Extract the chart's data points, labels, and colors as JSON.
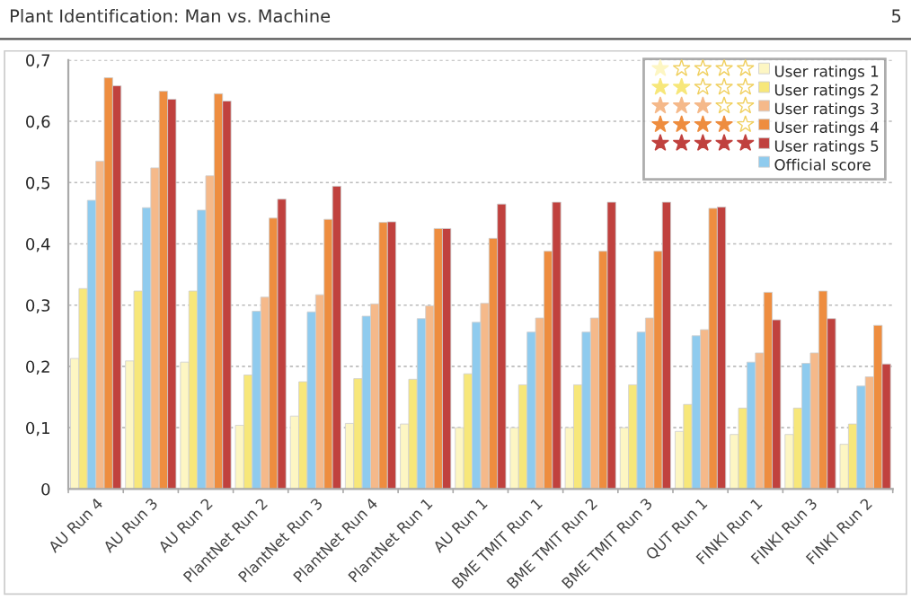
{
  "chart_data": {
    "type": "bar",
    "title": "Plant Identification: Man vs. Machine",
    "annotations": [
      "5"
    ],
    "categories": [
      "AU Run 4",
      "AU Run 3",
      "AU Run 2",
      "PlantNet Run 2",
      "PlantNet Run 3",
      "PlantNet Run 4",
      "PlantNet Run 1",
      "AU Run 1",
      "BME TMIT Run 1",
      "BME TMIT Run 2",
      "BME TMIT Run 3",
      "QUT Run 1",
      "FINKI Run 1",
      "FINKI Run 3",
      "FINKI Run 2"
    ],
    "series": [
      {
        "name": "User ratings 1",
        "color": "#fdf6c3",
        "values": [
          0.213,
          0.209,
          0.207,
          0.104,
          0.119,
          0.107,
          0.106,
          0.1,
          0.1,
          0.1,
          0.1,
          0.094,
          0.089,
          0.089,
          0.073
        ]
      },
      {
        "name": "User ratings 2",
        "color": "#f7e77a",
        "values": [
          0.327,
          0.323,
          0.323,
          0.186,
          0.175,
          0.18,
          0.179,
          0.188,
          0.17,
          0.17,
          0.17,
          0.138,
          0.132,
          0.132,
          0.106
        ]
      },
      {
        "name": "User ratings 3",
        "color": "#f5b98a",
        "values": [
          0.535,
          0.524,
          0.511,
          0.313,
          0.317,
          0.302,
          0.299,
          0.303,
          0.279,
          0.279,
          0.279,
          0.26,
          0.222,
          0.222,
          0.183
        ]
      },
      {
        "name": "User ratings 4",
        "color": "#ee8d3f",
        "values": [
          0.671,
          0.649,
          0.645,
          0.442,
          0.44,
          0.435,
          0.425,
          0.409,
          0.388,
          0.388,
          0.388,
          0.458,
          0.321,
          0.323,
          0.267
        ]
      },
      {
        "name": "User ratings 5",
        "color": "#c0413e",
        "values": [
          0.658,
          0.636,
          0.633,
          0.473,
          0.494,
          0.436,
          0.425,
          0.465,
          0.468,
          0.468,
          0.468,
          0.46,
          0.276,
          0.278,
          0.204
        ]
      },
      {
        "name": "Official score",
        "color": "#8fcbee",
        "values": [
          0.471,
          0.459,
          0.455,
          0.29,
          0.289,
          0.282,
          0.278,
          0.272,
          0.256,
          0.256,
          0.256,
          0.25,
          0.207,
          0.205,
          0.168
        ]
      }
    ],
    "ylim": [
      0,
      0.7
    ],
    "yticks": [
      {
        "value": 0,
        "label": "0"
      },
      {
        "value": 0.1,
        "label": "0,1"
      },
      {
        "value": 0.2,
        "label": "0,2"
      },
      {
        "value": 0.3,
        "label": "0,3"
      },
      {
        "value": 0.4,
        "label": "0,4"
      },
      {
        "value": 0.5,
        "label": "0,5"
      },
      {
        "value": 0.6,
        "label": "0,6"
      },
      {
        "value": 0.7,
        "label": "0,7"
      }
    ],
    "grid": "y",
    "legend": "top right"
  }
}
